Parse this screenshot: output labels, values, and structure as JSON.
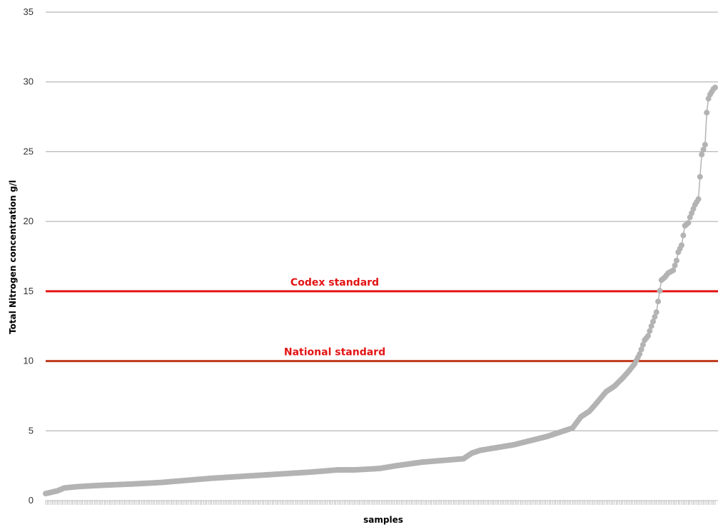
{
  "chart_data": {
    "type": "line",
    "title": "",
    "xlabel": "samples",
    "ylabel": "Total Nitrogen concentration g/l",
    "ylim": [
      0,
      35
    ],
    "yticks": [
      "0",
      "5",
      "10",
      "15",
      "20",
      "25",
      "30",
      "35"
    ],
    "grid": "horizontal",
    "sample_count": 400,
    "series": [
      {
        "color": "#b3b3b3",
        "marker": "circle",
        "description_points_x_is_sample_index": true,
        "x": [
          1,
          8,
          12,
          20,
          35,
          55,
          70,
          85,
          100,
          120,
          140,
          160,
          175,
          185,
          200,
          210,
          225,
          240,
          250,
          255,
          260,
          270,
          280,
          290,
          300,
          310,
          315,
          320,
          325,
          328,
          335,
          340,
          345,
          348,
          350,
          352,
          355,
          358,
          360,
          362,
          365,
          368,
          370,
          372,
          375,
          377,
          378,
          380,
          382,
          384,
          385,
          388,
          390,
          392,
          394,
          395,
          396,
          397,
          398,
          399,
          400
        ],
        "values": [
          0.5,
          0.7,
          0.9,
          1.0,
          1.1,
          1.2,
          1.3,
          1.45,
          1.6,
          1.75,
          1.9,
          2.05,
          2.2,
          2.2,
          2.3,
          2.5,
          2.75,
          2.9,
          3.0,
          3.4,
          3.6,
          3.8,
          4.0,
          4.3,
          4.6,
          5.0,
          5.2,
          6.0,
          6.4,
          6.8,
          7.8,
          8.2,
          8.8,
          9.2,
          9.5,
          9.8,
          10.5,
          11.5,
          11.8,
          12.5,
          13.5,
          15.8,
          16.0,
          16.3,
          16.5,
          17.2,
          17.8,
          18.3,
          19.7,
          19.9,
          20.3,
          21.2,
          21.6,
          24.8,
          25.5,
          27.8,
          28.8,
          29.1,
          29.3,
          29.5,
          29.6
        ]
      }
    ],
    "reference_lines": [
      {
        "label": "Codex standard",
        "y": 15,
        "color": "#e31313",
        "label_color": "#e31313"
      },
      {
        "label": "National standard",
        "y": 10,
        "color": "#c0391b",
        "label_color": "#e31313"
      }
    ]
  }
}
